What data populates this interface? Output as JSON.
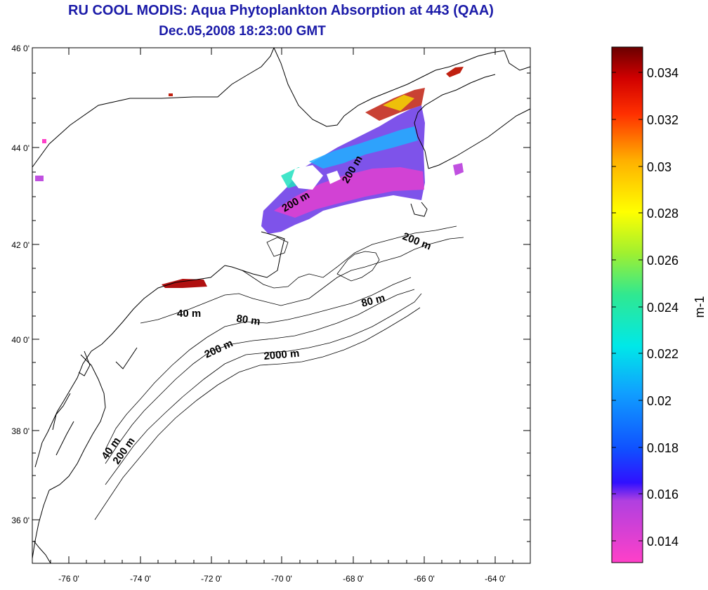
{
  "title": {
    "line1": "RU COOL MODIS: Aqua Phytoplankton Absorption at 443 (QAA)",
    "line2": "Dec.05,2008 18:23:00 GMT"
  },
  "map": {
    "lat_ticks": [
      "46 0'",
      "44 0'",
      "42 0'",
      "40 0'",
      "38 0'",
      "36 0'"
    ],
    "lon_ticks": [
      "-76 0'",
      "-74 0'",
      "-72 0'",
      "-70 0'",
      "-68 0'",
      "-66 0'",
      "-64 0'"
    ],
    "contour_labels": [
      "200 m",
      "200 m",
      "200 m",
      "80 m",
      "40 m",
      "80 m",
      "200 m",
      "2000 m",
      "40 m",
      "200 m"
    ]
  },
  "colorbar": {
    "ticks": [
      "0.034",
      "0.032",
      "0.03",
      "0.028",
      "0.026",
      "0.024",
      "0.022",
      "0.02",
      "0.018",
      "0.016",
      "0.014"
    ],
    "unit_label": "m-1"
  }
}
